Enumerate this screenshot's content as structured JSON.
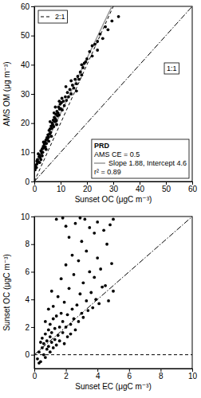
{
  "chart_data": [
    {
      "type": "scatter",
      "x_label": "Sunset OC (μgC m⁻³)",
      "y_label": "AMS OM (μg m⁻³)",
      "xlim": [
        0,
        60
      ],
      "ylim": [
        0,
        60
      ],
      "xticks": [
        0,
        10,
        20,
        30,
        40,
        50,
        60
      ],
      "yticks": [
        0,
        10,
        20,
        30,
        40,
        50,
        60
      ],
      "color": "#000000",
      "marker": "circle",
      "x": [
        0.5,
        1,
        1.2,
        1.5,
        1.8,
        2,
        2.2,
        2.5,
        2.8,
        3,
        3.2,
        3.4,
        3.6,
        3.8,
        4,
        4.2,
        4.4,
        4.6,
        4.8,
        5,
        5.2,
        5.4,
        5.6,
        5.8,
        6,
        6.2,
        6.4,
        6.6,
        6.8,
        7,
        7.2,
        7.4,
        7.6,
        7.8,
        8,
        8.2,
        8.4,
        8.6,
        8.8,
        9,
        9.2,
        9.4,
        9.6,
        9.8,
        10,
        10.3,
        10.6,
        11,
        11.4,
        11.8,
        12.2,
        12.6,
        13,
        13.5,
        14,
        14.5,
        15,
        15.5,
        16,
        16.5,
        17,
        17.5,
        18,
        18.5,
        19,
        19.5,
        20,
        21,
        22,
        23,
        24,
        25,
        26,
        27,
        28,
        29.5,
        32,
        2.5,
        3.5,
        4.5,
        5.5,
        6.5,
        7.5,
        8.5,
        9.5,
        10.5,
        1.5,
        3,
        6,
        8,
        12,
        14,
        16,
        18,
        22,
        24,
        0.3,
        0.8,
        1,
        2
      ],
      "values": [
        5.5,
        6.0,
        7.5,
        6.8,
        8.5,
        9.0,
        8.2,
        10.5,
        9.8,
        11.2,
        10.0,
        12.0,
        11.5,
        12.8,
        13.5,
        11.8,
        14.2,
        13.0,
        15.0,
        14.5,
        16.0,
        15.2,
        17.5,
        16.3,
        18.0,
        16.8,
        19.0,
        18.2,
        20.0,
        19.5,
        21.0,
        18.8,
        22.0,
        20.5,
        21.5,
        23.0,
        20.8,
        24.0,
        22.5,
        23.5,
        25.5,
        22.8,
        24.8,
        26.5,
        25.0,
        27.0,
        24.5,
        27.5,
        26.0,
        29.0,
        27.8,
        30.5,
        29.0,
        31.5,
        30.0,
        33.0,
        32.0,
        35.0,
        33.5,
        36.0,
        35.0,
        37.5,
        36.5,
        39.0,
        40.5,
        41.0,
        42.0,
        44.5,
        43.0,
        47.0,
        48.0,
        50.5,
        49.0,
        53.0,
        52.0,
        55.0,
        56.5,
        7.5,
        13.5,
        11.0,
        13.8,
        15.5,
        23.5,
        19.5,
        27.5,
        28.5,
        9.5,
        8.8,
        20.5,
        25.5,
        32.5,
        34.5,
        31.0,
        40.0,
        46.5,
        45.0,
        4.0,
        4.8,
        7.0,
        6.5
      ],
      "lines": [
        {
          "name": "2:1",
          "slope": 2,
          "intercept": 0,
          "line_style": "dashed",
          "color": "#000000",
          "legend": "top-left"
        },
        {
          "name": "1:1",
          "slope": 1,
          "intercept": 0,
          "line_style": "dashdot",
          "color": "#000000"
        },
        {
          "name": "Slope 1.88, Intercept 4.6",
          "slope": 1.88,
          "intercept": 4.6,
          "line_style": "solid",
          "color": "#999999",
          "legend": "bottom-right"
        }
      ],
      "annotations": [
        "PRD",
        "AMS CE = 0.5",
        "r² = 0.89"
      ]
    },
    {
      "type": "scatter",
      "x_label": "Sunset EC (μgC m⁻³)",
      "y_label": "Sunset OC (μgC m⁻³)",
      "xlim": [
        0,
        10
      ],
      "ylim": [
        -1,
        10
      ],
      "xticks": [
        0,
        2,
        4,
        6,
        8,
        10
      ],
      "yticks": [
        0,
        2,
        4,
        6,
        8,
        10
      ],
      "color": "#000000",
      "marker": "circle",
      "x": [
        0.2,
        0.3,
        0.4,
        0.5,
        0.5,
        0.6,
        0.6,
        0.7,
        0.7,
        0.8,
        0.8,
        0.9,
        0.9,
        1.0,
        1.0,
        1.0,
        1.1,
        1.1,
        1.2,
        1.2,
        1.2,
        1.3,
        1.3,
        1.4,
        1.4,
        1.5,
        1.5,
        1.6,
        1.6,
        1.7,
        1.7,
        1.8,
        1.8,
        1.9,
        2.0,
        2.0,
        2.1,
        2.1,
        2.2,
        2.2,
        2.3,
        2.4,
        2.4,
        2.5,
        2.5,
        2.6,
        2.6,
        2.7,
        2.8,
        2.8,
        2.9,
        3.0,
        3.0,
        3.1,
        3.1,
        3.2,
        3.3,
        3.3,
        3.4,
        3.5,
        3.5,
        3.6,
        3.7,
        3.8,
        3.8,
        3.9,
        4.0,
        4.0,
        4.1,
        4.2,
        4.3,
        4.4,
        4.5,
        4.6,
        4.7,
        4.8,
        4.9,
        5.0,
        1.4,
        1.8,
        2.0,
        2.9,
        0.9,
        1.1,
        0.7,
        0.4,
        0.3,
        1.9,
        2.3,
        5.0
      ],
      "values": [
        -0.3,
        0.2,
        -0.5,
        0.5,
        1.2,
        0.0,
        0.8,
        1.5,
        -0.2,
        0.4,
        1.0,
        1.8,
        0.6,
        0.2,
        1.3,
        2.2,
        0.9,
        1.6,
        0.5,
        2.6,
        3.5,
        1.1,
        1.9,
        0.7,
        2.8,
        1.4,
        4.2,
        2.0,
        1.0,
        3.0,
        5.5,
        1.6,
        2.4,
        3.8,
        2.0,
        6.5,
        1.3,
        2.9,
        4.8,
        8.5,
        2.2,
        3.3,
        7.2,
        2.6,
        5.8,
        1.8,
        9.5,
        3.6,
        2.4,
        6.8,
        4.4,
        3.0,
        8.2,
        2.7,
        5.2,
        9.8,
        3.9,
        7.5,
        3.2,
        6.0,
        9.2,
        4.5,
        3.4,
        8.8,
        5.6,
        4.0,
        9.6,
        7.0,
        3.7,
        6.2,
        4.9,
        9.0,
        5.0,
        8.0,
        3.9,
        9.4,
        6.6,
        4.6,
        9.8,
        9.9,
        9.3,
        9.9,
        3.3,
        4.6,
        2.4,
        0.9,
        -0.6,
        0.8,
        1.5,
        9.8
      ],
      "lines": [
        {
          "slope": 0,
          "intercept": 0,
          "line_style": "dashed",
          "color": "#000000"
        },
        {
          "slope": 1,
          "intercept": 0,
          "line_style": "dashdot",
          "color": "#000000"
        }
      ]
    }
  ]
}
